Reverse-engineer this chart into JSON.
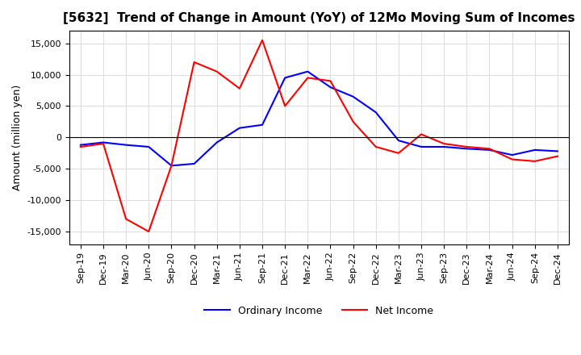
{
  "title": "[5632]  Trend of Change in Amount (YoY) of 12Mo Moving Sum of Incomes",
  "ylabel": "Amount (million yen)",
  "ylim": [
    -17000,
    17000
  ],
  "yticks": [
    -15000,
    -10000,
    -5000,
    0,
    5000,
    10000,
    15000
  ],
  "x_labels": [
    "Sep-19",
    "Dec-19",
    "Mar-20",
    "Jun-20",
    "Sep-20",
    "Dec-20",
    "Mar-21",
    "Jun-21",
    "Sep-21",
    "Dec-21",
    "Mar-22",
    "Jun-22",
    "Sep-22",
    "Dec-22",
    "Mar-23",
    "Jun-23",
    "Sep-23",
    "Dec-23",
    "Mar-24",
    "Jun-24",
    "Sep-24",
    "Dec-24"
  ],
  "ordinary_income": [
    -1200,
    -800,
    -1200,
    -1500,
    -4500,
    -4200,
    -800,
    1500,
    2000,
    9500,
    10500,
    8000,
    6500,
    4000,
    -500,
    -1500,
    -1500,
    -1800,
    -2000,
    -2800,
    -2000,
    -2200
  ],
  "net_income": [
    -1500,
    -1000,
    -13000,
    -15000,
    -4500,
    12000,
    10500,
    7800,
    15500,
    5000,
    9500,
    9000,
    2500,
    -1500,
    -2500,
    500,
    -1000,
    -1500,
    -1800,
    -3500,
    -3800,
    -3000
  ],
  "ordinary_color": "#0000ff",
  "net_color": "#ff0000",
  "grid_color": "#dddddd",
  "background_color": "#ffffff"
}
